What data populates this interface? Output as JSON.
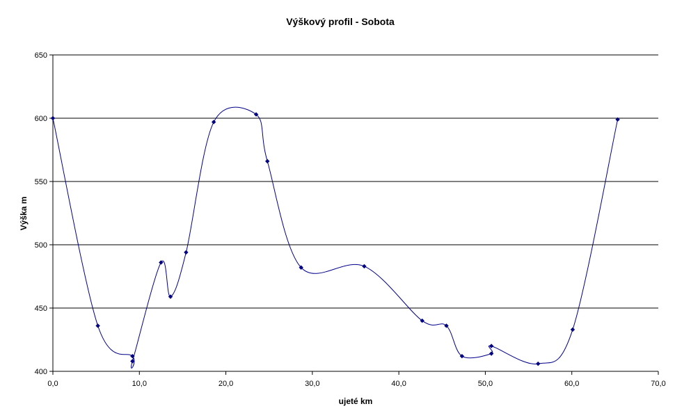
{
  "chart_data": {
    "type": "line",
    "title": "Výškový profil - Sobota",
    "xlabel": "ujeté km",
    "ylabel": "Výška m",
    "xlim": [
      0,
      70
    ],
    "ylim": [
      400,
      650
    ],
    "x_ticks": [
      "0,0",
      "10,0",
      "20,0",
      "30,0",
      "40,0",
      "50,0",
      "60,0",
      "70,0"
    ],
    "y_ticks": [
      "400",
      "450",
      "500",
      "550",
      "600",
      "650"
    ],
    "grid": "horizontal",
    "legend": "none",
    "line_color": "#00008B",
    "marker_color": "#000080",
    "series": [
      {
        "x": [
          0,
          5.2,
          9.2,
          9.2,
          12.5,
          13.6,
          15.4,
          18.6,
          23.5,
          24.8,
          28.7,
          36.0,
          42.7,
          45.5,
          47.3,
          50.7,
          50.7,
          56.1,
          60.1,
          65.3
        ],
        "y": [
          600,
          436,
          412,
          408,
          486,
          459,
          494,
          597,
          603,
          566,
          482,
          483,
          440,
          436,
          412,
          414,
          420,
          406,
          433,
          599
        ]
      }
    ]
  }
}
